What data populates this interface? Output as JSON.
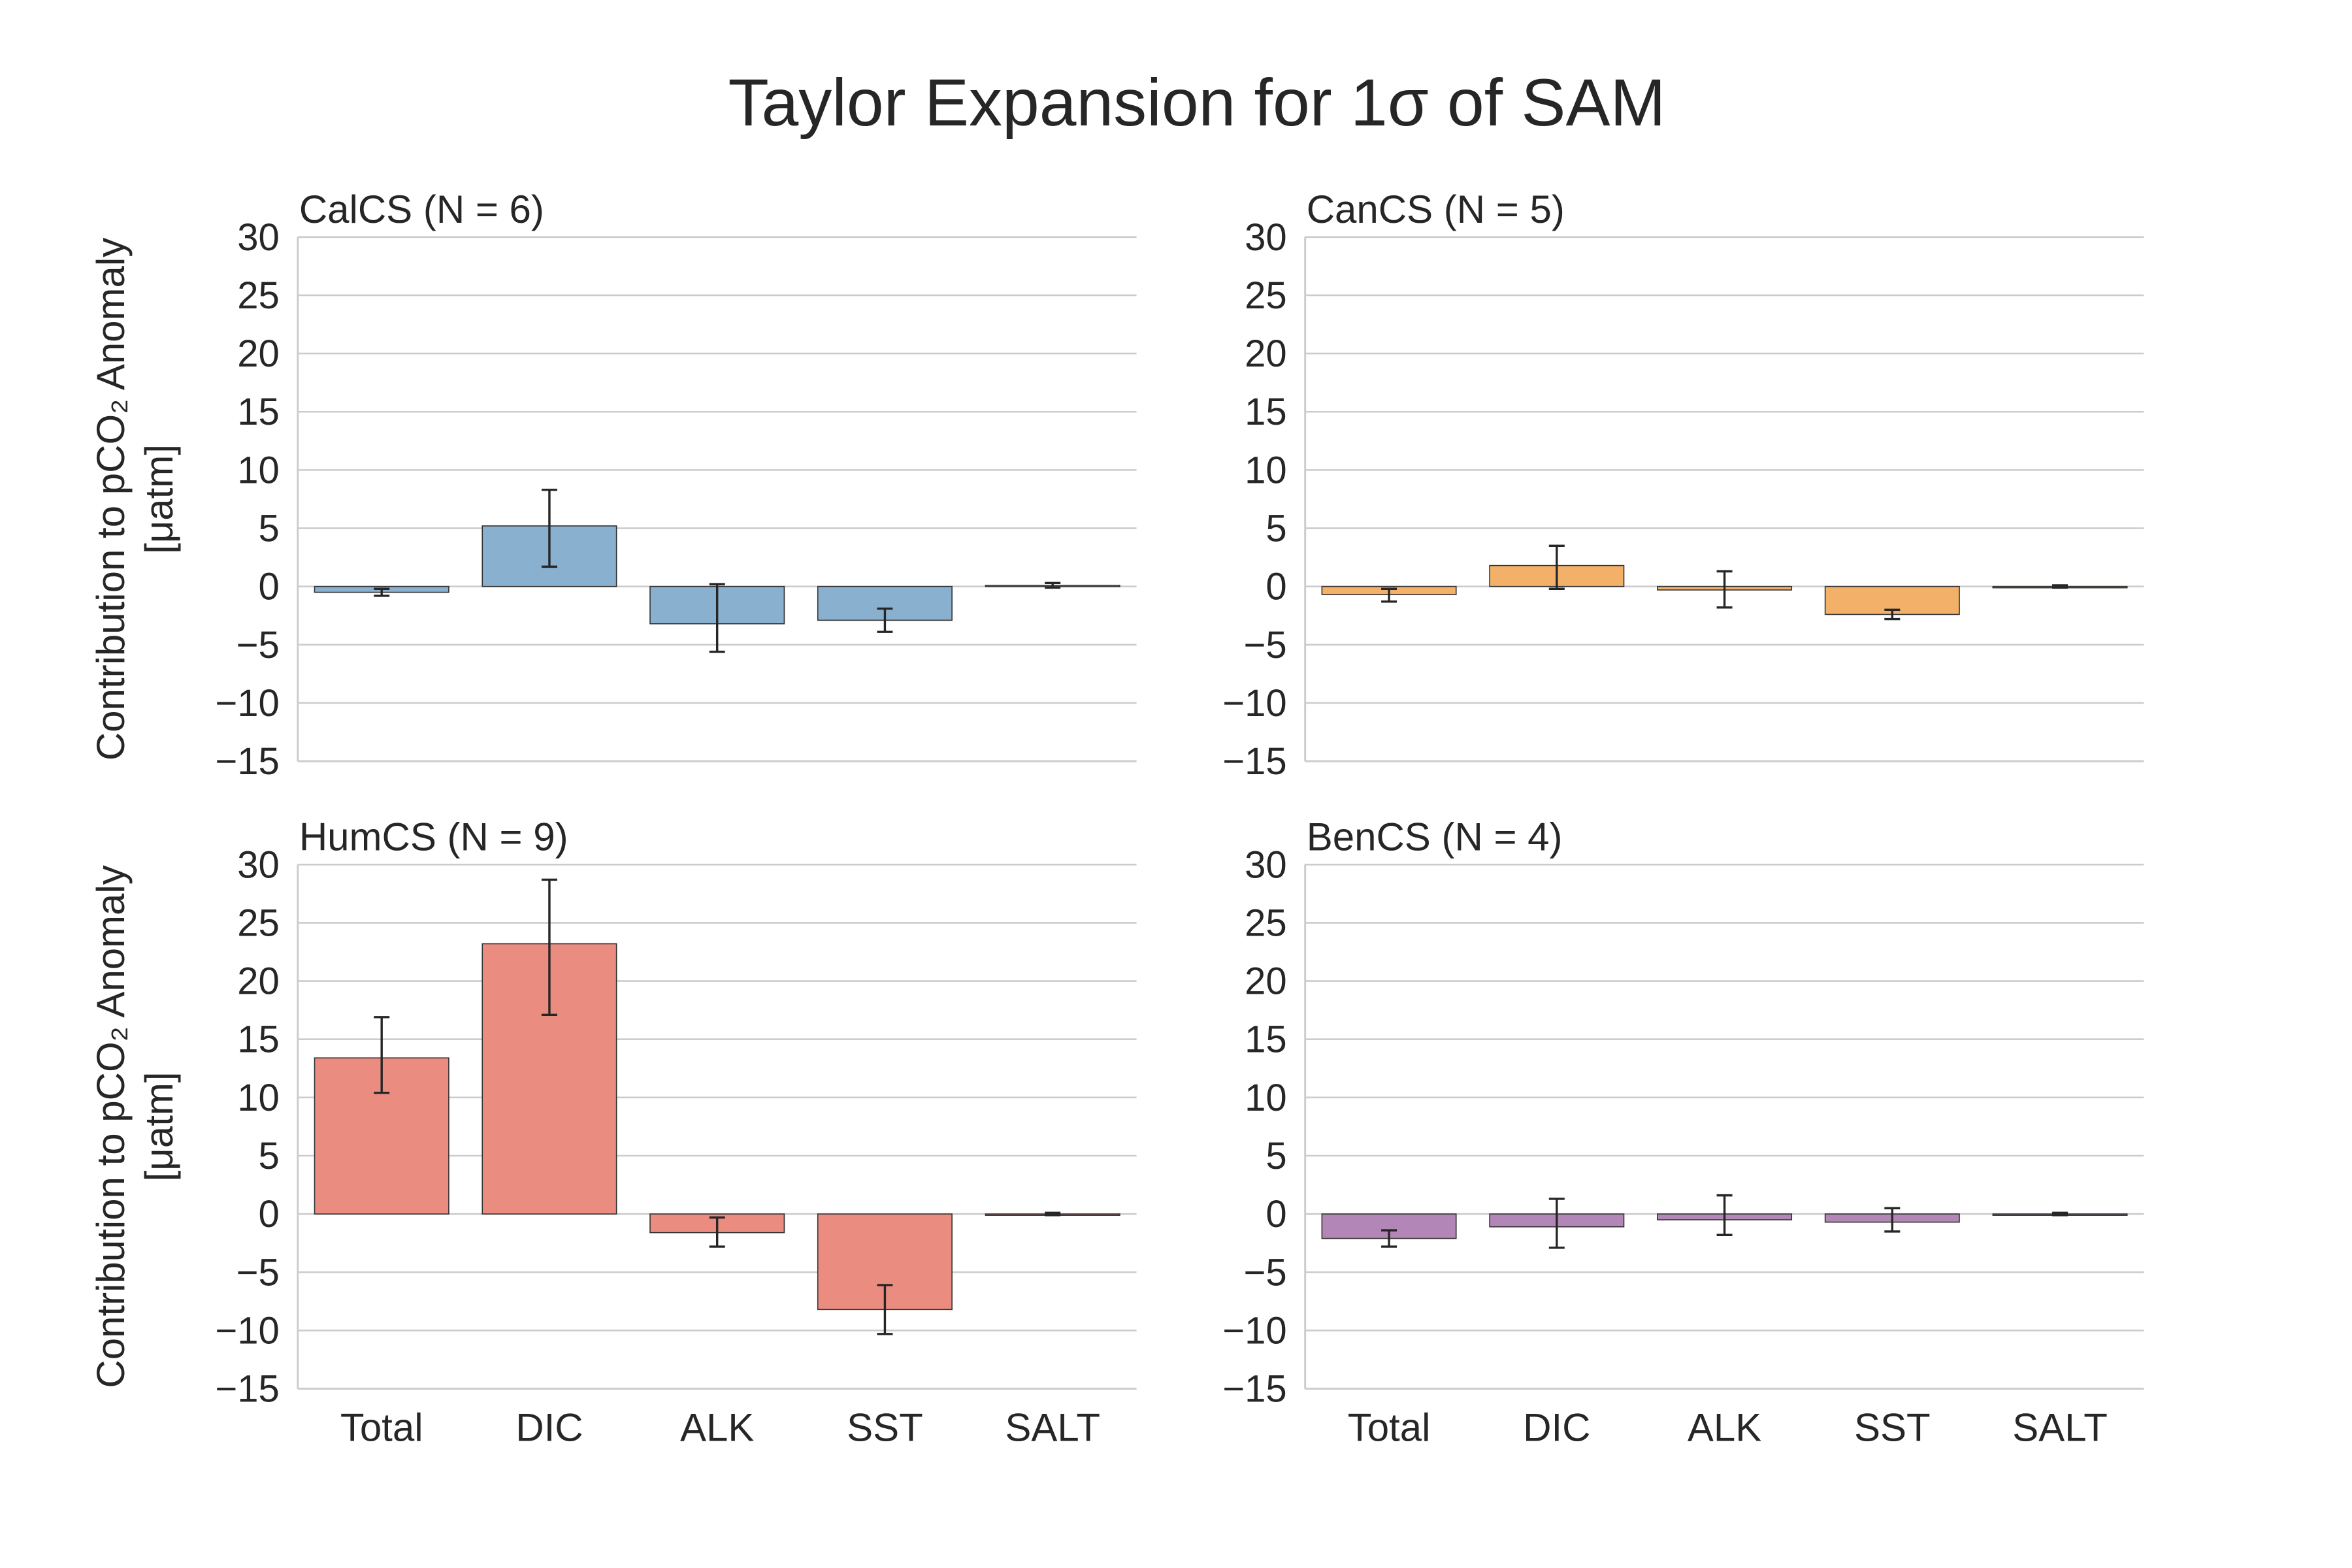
{
  "figure": {
    "title": "Taylor Expansion for 1σ of SAM"
  },
  "chart_data": [
    {
      "type": "bar",
      "title": "CalCS (N = 6)",
      "ylabel": "Contribution to pCO₂ Anomaly [μatm]",
      "categories": [
        "Total",
        "DIC",
        "ALK",
        "SST",
        "SALT"
      ],
      "values": [
        -0.5,
        5.2,
        -3.2,
        -2.9,
        0.1
      ],
      "error_low": [
        -0.8,
        1.7,
        -5.6,
        -3.9,
        -0.1
      ],
      "error_high": [
        -0.2,
        8.3,
        0.2,
        -1.9,
        0.3
      ],
      "ylim": [
        -15,
        30
      ],
      "yticks": [
        30,
        25,
        20,
        15,
        10,
        5,
        0,
        -5,
        -10,
        -15
      ],
      "ytick_labels": [
        "30",
        "25",
        "20",
        "15",
        "10",
        "5",
        "0",
        "−5",
        "−10",
        "−15"
      ],
      "color": "#8ab0cf",
      "grid": true
    },
    {
      "type": "bar",
      "title": "CanCS (N = 5)",
      "ylabel": "",
      "categories": [
        "Total",
        "DIC",
        "ALK",
        "SST",
        "SALT"
      ],
      "values": [
        -0.7,
        1.8,
        -0.3,
        -2.4,
        0.0
      ],
      "error_low": [
        -1.3,
        -0.2,
        -1.8,
        -2.8,
        -0.1
      ],
      "error_high": [
        -0.2,
        3.5,
        1.3,
        -2.0,
        0.1
      ],
      "ylim": [
        -15,
        30
      ],
      "yticks": [
        30,
        25,
        20,
        15,
        10,
        5,
        0,
        -5,
        -10,
        -15
      ],
      "ytick_labels": [
        "30",
        "25",
        "20",
        "15",
        "10",
        "5",
        "0",
        "−5",
        "−10",
        "−15"
      ],
      "color": "#f3b068",
      "grid": true
    },
    {
      "type": "bar",
      "title": "HumCS (N = 9)",
      "ylabel": "Contribution to pCO₂ Anomaly [μatm]",
      "categories": [
        "Total",
        "DIC",
        "ALK",
        "SST",
        "SALT"
      ],
      "values": [
        13.4,
        23.2,
        -1.6,
        -8.2,
        0.0
      ],
      "error_low": [
        10.4,
        17.1,
        -2.8,
        -10.3,
        -0.1
      ],
      "error_high": [
        16.9,
        28.7,
        -0.3,
        -6.1,
        0.1
      ],
      "ylim": [
        -15,
        30
      ],
      "yticks": [
        30,
        25,
        20,
        15,
        10,
        5,
        0,
        -5,
        -10,
        -15
      ],
      "ytick_labels": [
        "30",
        "25",
        "20",
        "15",
        "10",
        "5",
        "0",
        "−5",
        "−10",
        "−15"
      ],
      "color": "#eb8c81",
      "grid": true
    },
    {
      "type": "bar",
      "title": "BenCS (N = 4)",
      "ylabel": "",
      "categories": [
        "Total",
        "DIC",
        "ALK",
        "SST",
        "SALT"
      ],
      "values": [
        -2.1,
        -1.1,
        -0.5,
        -0.7,
        0.0
      ],
      "error_low": [
        -2.8,
        -2.9,
        -1.8,
        -1.5,
        -0.1
      ],
      "error_high": [
        -1.4,
        1.3,
        1.6,
        0.5,
        0.1
      ],
      "ylim": [
        -15,
        30
      ],
      "yticks": [
        30,
        25,
        20,
        15,
        10,
        5,
        0,
        -5,
        -10,
        -15
      ],
      "ytick_labels": [
        "30",
        "25",
        "20",
        "15",
        "10",
        "5",
        "0",
        "−5",
        "−10",
        "−15"
      ],
      "color": "#b286b6",
      "grid": true
    }
  ]
}
